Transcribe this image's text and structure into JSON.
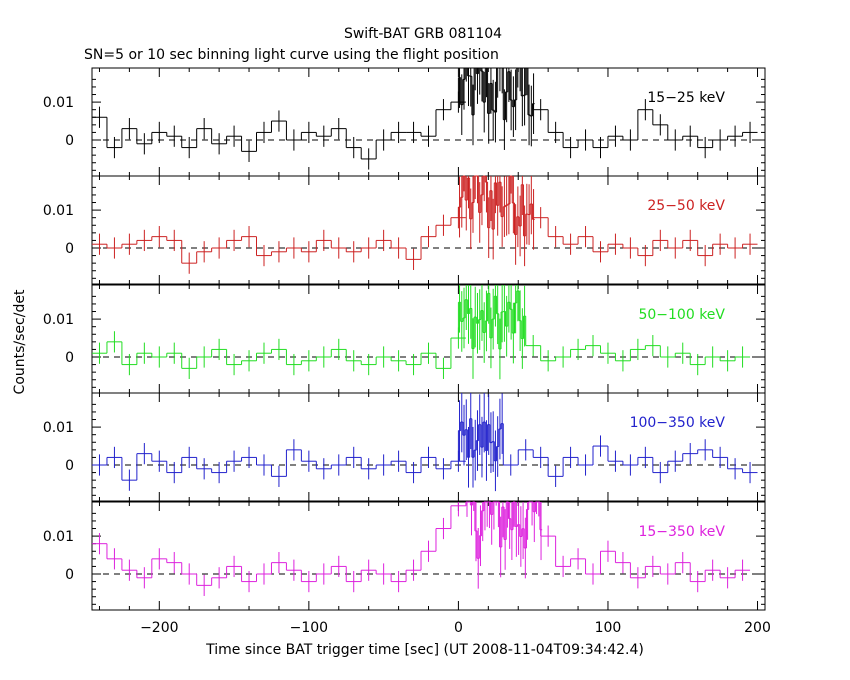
{
  "chart_data": {
    "type": "line",
    "title": "Swift-BAT GRB 081104",
    "subtitle": "SN=5 or 10 sec binning light curve using the flight position",
    "xlabel": "Time since BAT trigger time [sec] (UT 2008-11-04T09:34:42.4)",
    "ylabel": "Counts/sec/det",
    "xlim": [
      -245,
      205
    ],
    "ylim": [
      -0.0095,
      0.019
    ],
    "x_ticks": [
      -200,
      -100,
      0,
      100,
      200
    ],
    "x_tick_labels": [
      "−200",
      "−100",
      "0",
      "100",
      "200"
    ],
    "y_ticks": [
      0,
      0.01
    ],
    "y_tick_labels": [
      "0",
      "0.01"
    ],
    "reference_line": 0,
    "panels": [
      {
        "label": "15−25 keV",
        "color": "#000000",
        "binning": [
          [
            -245,
            10,
            0.006
          ],
          [
            -235,
            10,
            -0.002
          ],
          [
            -225,
            10,
            0.003
          ],
          [
            -215,
            10,
            -0.001
          ],
          [
            -205,
            10,
            0.002
          ],
          [
            -195,
            10,
            0.001
          ],
          [
            -185,
            10,
            -0.002
          ],
          [
            -175,
            10,
            0.003
          ],
          [
            -165,
            10,
            -0.001
          ],
          [
            -155,
            10,
            0.001
          ],
          [
            -145,
            10,
            -0.003
          ],
          [
            -135,
            10,
            0.002
          ],
          [
            -125,
            10,
            0.005
          ],
          [
            -115,
            10,
            0.0
          ],
          [
            -105,
            10,
            0.002
          ],
          [
            -95,
            10,
            0.001
          ],
          [
            -85,
            10,
            0.003
          ],
          [
            -75,
            10,
            -0.002
          ],
          [
            -65,
            10,
            -0.005
          ],
          [
            -55,
            10,
            0.0
          ],
          [
            -45,
            10,
            0.002
          ],
          [
            -35,
            10,
            0.002
          ],
          [
            -25,
            10,
            0.001
          ],
          [
            -15,
            10,
            0.008
          ],
          [
            -5,
            10,
            0.01
          ]
        ],
        "burst_start": 0,
        "burst_end": 50,
        "burst_level": 0.017,
        "post": [
          [
            50,
            10,
            0.008
          ],
          [
            60,
            10,
            0.002
          ],
          [
            70,
            10,
            -0.002
          ],
          [
            80,
            10,
            0.0
          ],
          [
            90,
            10,
            -0.002
          ],
          [
            100,
            10,
            0.001
          ],
          [
            110,
            10,
            0.0
          ],
          [
            120,
            10,
            0.008
          ],
          [
            130,
            10,
            0.004
          ],
          [
            140,
            10,
            0.0
          ],
          [
            150,
            10,
            0.001
          ],
          [
            160,
            10,
            -0.002
          ],
          [
            170,
            10,
            0.0
          ],
          [
            180,
            10,
            0.001
          ],
          [
            190,
            10,
            0.002
          ]
        ]
      },
      {
        "label": "25−50 keV",
        "color": "#cc2222",
        "binning": [
          [
            -245,
            10,
            0.001
          ],
          [
            -235,
            10,
            0.0
          ],
          [
            -225,
            10,
            0.001
          ],
          [
            -215,
            10,
            0.002
          ],
          [
            -205,
            10,
            0.003
          ],
          [
            -195,
            10,
            0.002
          ],
          [
            -185,
            10,
            -0.004
          ],
          [
            -175,
            10,
            -0.001
          ],
          [
            -165,
            10,
            0.0
          ],
          [
            -155,
            10,
            0.002
          ],
          [
            -145,
            10,
            0.003
          ],
          [
            -135,
            10,
            -0.002
          ],
          [
            -125,
            10,
            -0.001
          ],
          [
            -115,
            10,
            0.0
          ],
          [
            -105,
            10,
            -0.001
          ],
          [
            -95,
            10,
            0.002
          ],
          [
            -85,
            10,
            0.0
          ],
          [
            -75,
            10,
            -0.001
          ],
          [
            -65,
            10,
            0.0
          ],
          [
            -55,
            10,
            0.002
          ],
          [
            -45,
            10,
            0.0
          ],
          [
            -35,
            10,
            -0.003
          ],
          [
            -25,
            10,
            0.003
          ],
          [
            -15,
            10,
            0.006
          ],
          [
            -5,
            10,
            0.008
          ]
        ],
        "burst_start": 0,
        "burst_end": 50,
        "burst_level": 0.017,
        "post": [
          [
            50,
            10,
            0.008
          ],
          [
            60,
            10,
            0.003
          ],
          [
            70,
            10,
            0.001
          ],
          [
            80,
            10,
            0.003
          ],
          [
            90,
            10,
            -0.001
          ],
          [
            100,
            10,
            0.001
          ],
          [
            110,
            10,
            0.0
          ],
          [
            120,
            10,
            -0.002
          ],
          [
            130,
            10,
            0.002
          ],
          [
            140,
            10,
            0.0
          ],
          [
            150,
            10,
            0.002
          ],
          [
            160,
            10,
            -0.002
          ],
          [
            170,
            10,
            0.001
          ],
          [
            180,
            10,
            0.0
          ],
          [
            190,
            10,
            0.001
          ]
        ]
      },
      {
        "label": "50−100 keV",
        "color": "#22dd22",
        "binning": [
          [
            -245,
            10,
            0.001
          ],
          [
            -235,
            10,
            0.004
          ],
          [
            -225,
            10,
            -0.002
          ],
          [
            -215,
            10,
            0.001
          ],
          [
            -205,
            10,
            0.0
          ],
          [
            -195,
            10,
            0.001
          ],
          [
            -185,
            10,
            -0.003
          ],
          [
            -175,
            10,
            0.0
          ],
          [
            -165,
            10,
            0.002
          ],
          [
            -155,
            10,
            -0.002
          ],
          [
            -145,
            10,
            -0.001
          ],
          [
            -135,
            10,
            0.001
          ],
          [
            -125,
            10,
            0.002
          ],
          [
            -115,
            10,
            -0.002
          ],
          [
            -105,
            10,
            -0.001
          ],
          [
            -95,
            10,
            0.0
          ],
          [
            -85,
            10,
            0.002
          ],
          [
            -75,
            10,
            -0.001
          ],
          [
            -65,
            10,
            -0.002
          ],
          [
            -55,
            10,
            0.0
          ],
          [
            -45,
            10,
            -0.001
          ],
          [
            -35,
            10,
            -0.002
          ],
          [
            -25,
            10,
            0.001
          ],
          [
            -15,
            10,
            -0.003
          ],
          [
            -5,
            10,
            0.005
          ]
        ],
        "burst_start": 0,
        "burst_end": 45,
        "burst_level": 0.013,
        "post": [
          [
            45,
            10,
            0.003
          ],
          [
            55,
            10,
            -0.001
          ],
          [
            65,
            10,
            0.0
          ],
          [
            75,
            10,
            0.002
          ],
          [
            85,
            10,
            0.003
          ],
          [
            95,
            10,
            0.001
          ],
          [
            105,
            10,
            -0.001
          ],
          [
            115,
            10,
            0.002
          ],
          [
            125,
            10,
            0.003
          ],
          [
            135,
            10,
            0.0
          ],
          [
            145,
            10,
            0.001
          ],
          [
            155,
            10,
            -0.002
          ],
          [
            165,
            10,
            0.0
          ],
          [
            175,
            10,
            -0.001
          ],
          [
            185,
            10,
            0.0
          ]
        ]
      },
      {
        "label": "100−350 keV",
        "color": "#2222cc",
        "binning": [
          [
            -245,
            10,
            0.0
          ],
          [
            -235,
            10,
            0.002
          ],
          [
            -225,
            10,
            -0.004
          ],
          [
            -215,
            10,
            0.003
          ],
          [
            -205,
            10,
            0.001
          ],
          [
            -195,
            10,
            -0.002
          ],
          [
            -185,
            10,
            0.002
          ],
          [
            -175,
            10,
            -0.001
          ],
          [
            -165,
            10,
            -0.002
          ],
          [
            -155,
            10,
            0.001
          ],
          [
            -145,
            10,
            0.002
          ],
          [
            -135,
            10,
            0.0
          ],
          [
            -125,
            10,
            -0.003
          ],
          [
            -115,
            10,
            0.004
          ],
          [
            -105,
            10,
            0.001
          ],
          [
            -95,
            10,
            -0.001
          ],
          [
            -85,
            10,
            0.0
          ],
          [
            -75,
            10,
            0.002
          ],
          [
            -65,
            10,
            -0.001
          ],
          [
            -55,
            10,
            0.0
          ],
          [
            -45,
            10,
            0.001
          ],
          [
            -35,
            10,
            -0.002
          ],
          [
            -25,
            10,
            0.002
          ],
          [
            -15,
            10,
            -0.001
          ],
          [
            -5,
            10,
            0.001
          ]
        ],
        "burst_start": 0,
        "burst_end": 30,
        "burst_level": 0.01,
        "post": [
          [
            30,
            10,
            0.0
          ],
          [
            40,
            10,
            0.004
          ],
          [
            50,
            10,
            0.002
          ],
          [
            60,
            10,
            -0.003
          ],
          [
            70,
            10,
            0.002
          ],
          [
            80,
            10,
            0.0
          ],
          [
            90,
            10,
            0.005
          ],
          [
            100,
            10,
            0.001
          ],
          [
            110,
            10,
            0.0
          ],
          [
            120,
            10,
            0.002
          ],
          [
            130,
            10,
            -0.002
          ],
          [
            140,
            10,
            0.001
          ],
          [
            150,
            10,
            0.003
          ],
          [
            160,
            10,
            0.004
          ],
          [
            170,
            10,
            0.002
          ],
          [
            180,
            10,
            -0.001
          ],
          [
            190,
            10,
            -0.002
          ]
        ]
      },
      {
        "label": "15−350 keV",
        "color": "#dd22dd",
        "binning": [
          [
            -245,
            10,
            0.008
          ],
          [
            -235,
            10,
            0.004
          ],
          [
            -225,
            10,
            0.001
          ],
          [
            -215,
            10,
            -0.001
          ],
          [
            -205,
            10,
            0.004
          ],
          [
            -195,
            10,
            0.003
          ],
          [
            -185,
            10,
            0.0
          ],
          [
            -175,
            10,
            -0.003
          ],
          [
            -165,
            10,
            -0.001
          ],
          [
            -155,
            10,
            0.002
          ],
          [
            -145,
            10,
            -0.002
          ],
          [
            -135,
            10,
            0.0
          ],
          [
            -125,
            10,
            0.003
          ],
          [
            -115,
            10,
            0.001
          ],
          [
            -105,
            10,
            -0.002
          ],
          [
            -95,
            10,
            0.0
          ],
          [
            -85,
            10,
            0.002
          ],
          [
            -75,
            10,
            -0.002
          ],
          [
            -65,
            10,
            0.001
          ],
          [
            -55,
            10,
            0.0
          ],
          [
            -45,
            10,
            -0.002
          ],
          [
            -35,
            10,
            0.001
          ],
          [
            -25,
            10,
            0.006
          ],
          [
            -15,
            10,
            0.012
          ],
          [
            -5,
            10,
            0.018
          ]
        ],
        "burst_start": 5,
        "burst_end": 55,
        "burst_level": 0.02,
        "post": [
          [
            55,
            10,
            0.01
          ],
          [
            65,
            10,
            0.002
          ],
          [
            75,
            10,
            0.004
          ],
          [
            85,
            10,
            0.0
          ],
          [
            95,
            10,
            0.006
          ],
          [
            105,
            10,
            0.003
          ],
          [
            115,
            10,
            -0.001
          ],
          [
            125,
            10,
            0.002
          ],
          [
            135,
            10,
            0.0
          ],
          [
            145,
            10,
            0.003
          ],
          [
            155,
            10,
            -0.002
          ],
          [
            165,
            10,
            0.001
          ],
          [
            175,
            10,
            -0.001
          ],
          [
            185,
            10,
            0.001
          ]
        ]
      }
    ]
  }
}
